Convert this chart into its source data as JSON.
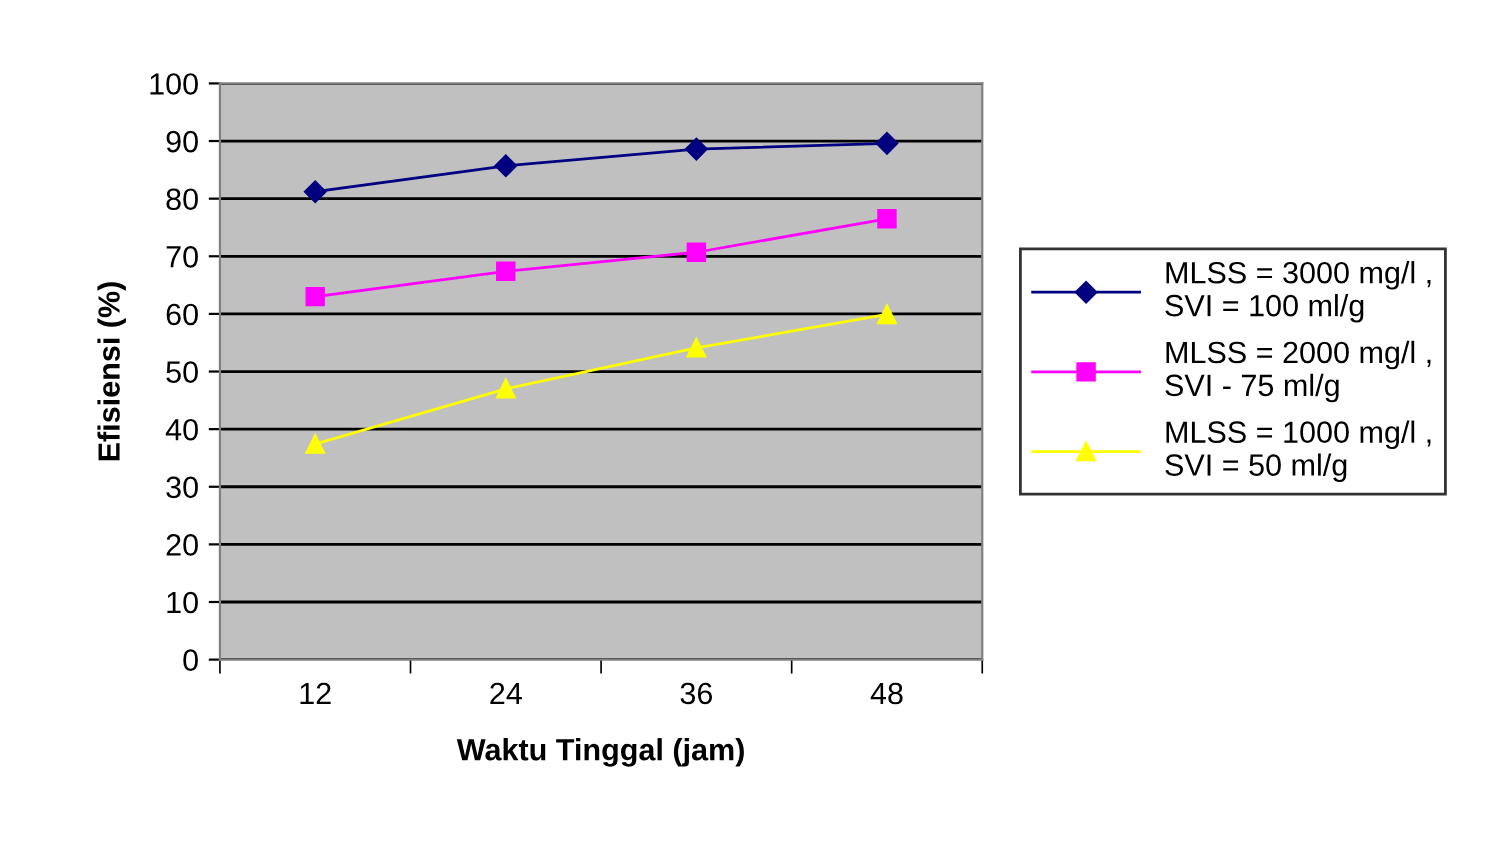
{
  "chart_data": {
    "type": "line",
    "xlabel": "Waktu Tinggal (jam)",
    "ylabel": "Efisiensi (%)",
    "categories": [
      "12",
      "24",
      "36",
      "48"
    ],
    "series": [
      {
        "name": "MLSS = 3000 mg/l ,\nSVI = 100 ml/g",
        "color": "#000080",
        "marker": "diamond",
        "values": [
          81.2,
          85.7,
          88.6,
          89.6
        ]
      },
      {
        "name": "MLSS = 2000 mg/l ,\nSVI - 75 ml/g",
        "color": "#ff00ff",
        "marker": "square",
        "values": [
          63.0,
          67.4,
          70.7,
          76.5
        ]
      },
      {
        "name": "MLSS = 1000 mg/l ,\nSVI = 50 ml/g",
        "color": "#ffff00",
        "marker": "triangle",
        "values": [
          37.4,
          47.0,
          54.1,
          59.9
        ]
      }
    ],
    "ylim": [
      0,
      100
    ],
    "yticks": [
      0,
      10,
      20,
      30,
      40,
      50,
      60,
      70,
      80,
      90,
      100
    ],
    "grid": "y",
    "legend": "right",
    "line_style": "solid"
  }
}
